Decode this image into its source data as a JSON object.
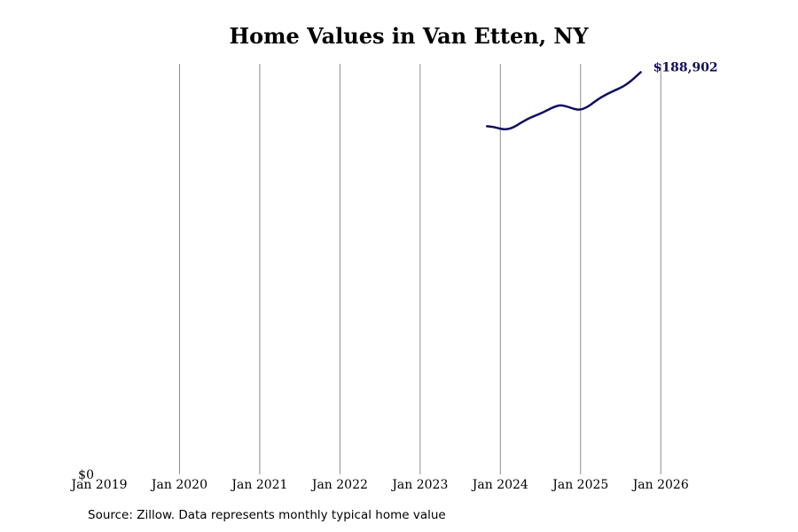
{
  "chart_data": {
    "type": "line",
    "title": "Home Values in Van Etten, NY",
    "xlabel": "",
    "ylabel": "",
    "x_ticks": [
      "Jan 2019",
      "Jan 2020",
      "Jan 2021",
      "Jan 2022",
      "Jan 2023",
      "Jan 2024",
      "Jan 2025",
      "Jan 2026"
    ],
    "y_ticks": [
      "$0"
    ],
    "xlim": [
      "2019-01",
      "2026-08"
    ],
    "ylim": [
      0,
      192000
    ],
    "grid": "vertical",
    "legend": "none",
    "series": [
      {
        "name": "",
        "color": "#0f0f5f",
        "points": [
          {
            "x": "2023-11",
            "y": 163500
          },
          {
            "x": "2023-12",
            "y": 163200
          },
          {
            "x": "2024-01",
            "y": 162300
          },
          {
            "x": "2024-02",
            "y": 162000
          },
          {
            "x": "2024-03",
            "y": 163000
          },
          {
            "x": "2024-04",
            "y": 165000
          },
          {
            "x": "2024-05",
            "y": 166800
          },
          {
            "x": "2024-06",
            "y": 168200
          },
          {
            "x": "2024-07",
            "y": 169500
          },
          {
            "x": "2024-08",
            "y": 171000
          },
          {
            "x": "2024-09",
            "y": 172600
          },
          {
            "x": "2024-10",
            "y": 173500
          },
          {
            "x": "2024-11",
            "y": 172800
          },
          {
            "x": "2024-12",
            "y": 171600
          },
          {
            "x": "2025-01",
            "y": 171200
          },
          {
            "x": "2025-02",
            "y": 172500
          },
          {
            "x": "2025-03",
            "y": 174800
          },
          {
            "x": "2025-04",
            "y": 177000
          },
          {
            "x": "2025-05",
            "y": 178700
          },
          {
            "x": "2025-06",
            "y": 180200
          },
          {
            "x": "2025-07",
            "y": 181600
          },
          {
            "x": "2025-08",
            "y": 183400
          },
          {
            "x": "2025-09",
            "y": 186000
          },
          {
            "x": "2025-10",
            "y": 188902
          }
        ]
      }
    ],
    "end_label": "$188,902"
  },
  "footer": {
    "source": "Source: Zillow. Data represents monthly typical home value"
  }
}
